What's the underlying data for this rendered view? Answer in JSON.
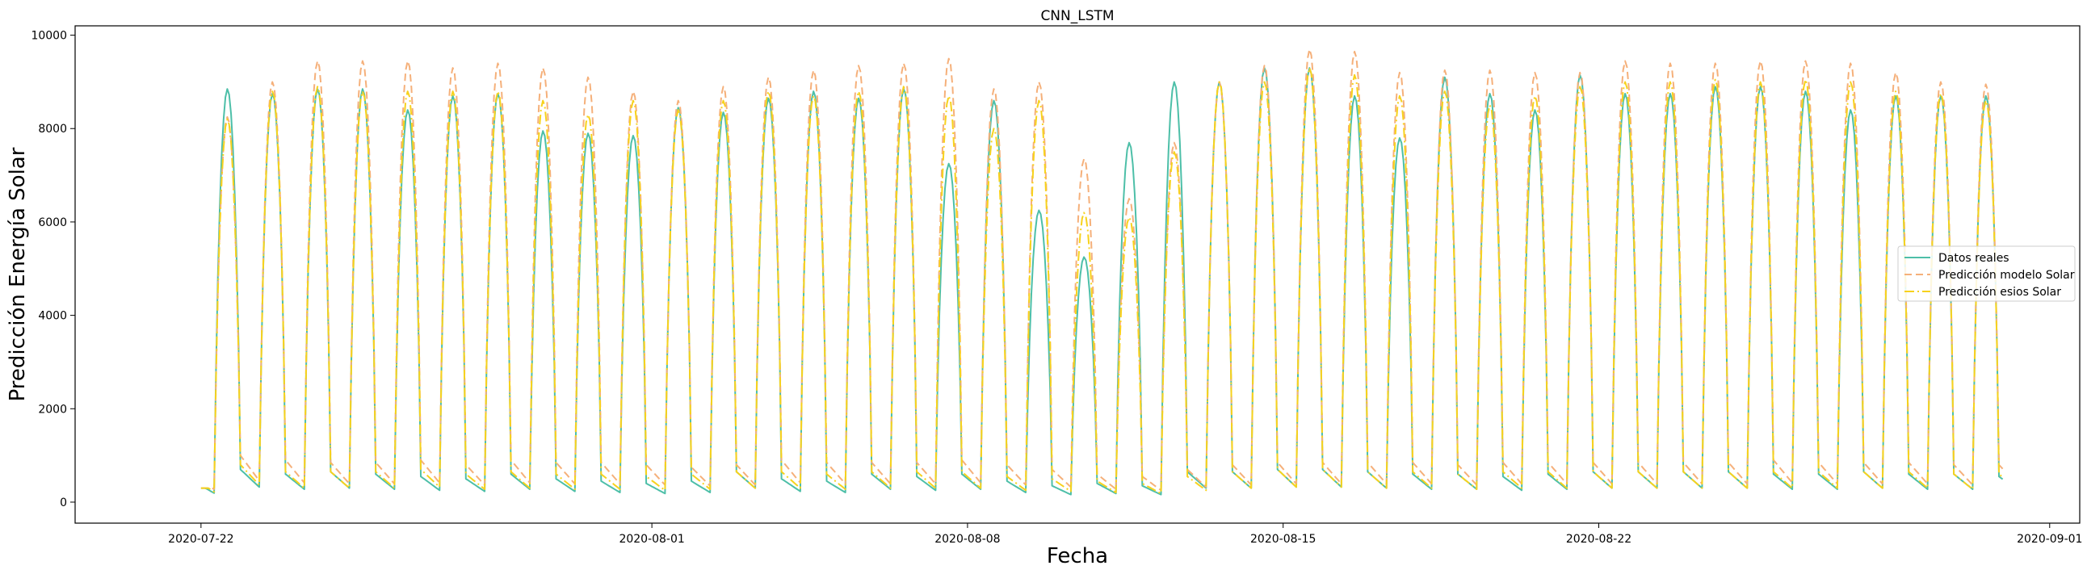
{
  "chart_data": {
    "type": "line",
    "title": "CNN_LSTM",
    "xlabel": "Fecha",
    "ylabel": "Predicción Energía Solar",
    "x_axis_type": "date",
    "xlim": [
      "2020-07-19T05:00",
      "2020-09-01T16:00"
    ],
    "ylim": [
      -450,
      10200
    ],
    "x_ticks": [
      "2020-07-22",
      "2020-08-01",
      "2020-08-08",
      "2020-08-15",
      "2020-08-22",
      "2020-09-01"
    ],
    "y_ticks": [
      0,
      2000,
      4000,
      6000,
      8000,
      10000
    ],
    "grid": false,
    "legend_position": "center-right",
    "date_range": {
      "start": "2020-07-22",
      "end": "2020-08-29"
    },
    "series": [
      {
        "name": "Datos reales",
        "color": "#4dbfa8",
        "dash": "solid",
        "daily_peak": [
          8850,
          8750,
          8850,
          8850,
          8400,
          8700,
          8750,
          7950,
          7900,
          7850,
          8450,
          8350,
          8650,
          8800,
          8650,
          8850,
          7250,
          8600,
          6250,
          5250,
          7700,
          9000,
          9000,
          9300,
          9300,
          8700,
          7800,
          9100,
          8750,
          8400,
          9150,
          8750,
          8750,
          8900,
          8900,
          8800,
          8400,
          8700,
          8700,
          8700
        ],
        "daily_night": [
          700,
          600,
          650,
          600,
          550,
          500,
          600,
          500,
          450,
          400,
          450,
          650,
          500,
          450,
          600,
          550,
          600,
          450,
          350,
          400,
          350,
          650,
          650,
          700,
          700,
          650,
          600,
          600,
          550,
          600,
          650,
          650,
          650,
          650,
          600,
          600,
          650,
          600,
          600,
          550
        ]
      },
      {
        "name": "Predicción modelo Solar",
        "color": "#f5b07a",
        "dash": "dashed",
        "daily_peak": [
          8250,
          9000,
          9450,
          9450,
          9450,
          9300,
          9400,
          9300,
          9100,
          8800,
          8600,
          8900,
          9100,
          9250,
          9350,
          9400,
          9500,
          8850,
          9000,
          7350,
          6500,
          7700,
          9000,
          9350,
          9700,
          9650,
          9200,
          9250,
          9250,
          9200,
          9200,
          9450,
          9400,
          9400,
          9450,
          9450,
          9400,
          9200,
          9000,
          8950
        ],
        "daily_night": [
          1000,
          900,
          850,
          850,
          900,
          800,
          900,
          850,
          850,
          800,
          750,
          800,
          900,
          850,
          850,
          850,
          900,
          800,
          700,
          600,
          550,
          700,
          800,
          850,
          850,
          850,
          850,
          800,
          850,
          850,
          850,
          850,
          850,
          850,
          900,
          850,
          850,
          850,
          800,
          800
        ]
      },
      {
        "name": "Predicción esios Solar",
        "color": "#f7d21d",
        "dash": "dashdot",
        "daily_peak": [
          8200,
          8800,
          8900,
          8800,
          8800,
          8800,
          8800,
          8600,
          8300,
          8600,
          8400,
          8600,
          8800,
          8700,
          8800,
          8900,
          8700,
          8000,
          8600,
          6200,
          6100,
          7500,
          9000,
          9000,
          9300,
          9150,
          8700,
          8800,
          8500,
          8700,
          8900,
          9000,
          9000,
          9050,
          9000,
          9050,
          9000,
          8800,
          8750,
          8600
        ],
        "daily_night": [
          800,
          650,
          650,
          650,
          700,
          600,
          650,
          600,
          600,
          550,
          600,
          650,
          650,
          600,
          650,
          650,
          650,
          550,
          500,
          450,
          400,
          550,
          650,
          700,
          700,
          650,
          650,
          600,
          650,
          650,
          650,
          650,
          650,
          650,
          650,
          650,
          650,
          650,
          600,
          600
        ]
      }
    ]
  }
}
